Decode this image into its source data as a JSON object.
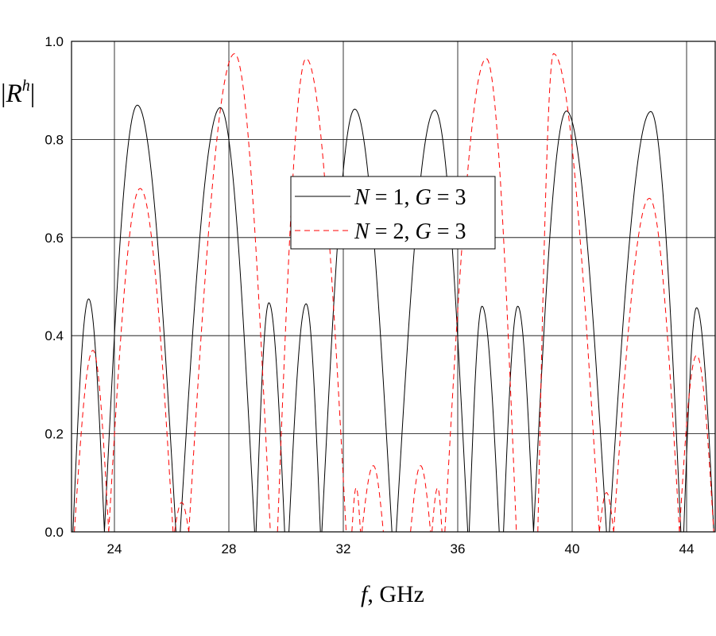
{
  "chart_data": {
    "type": "line",
    "title": "",
    "xlabel": "f, GHz",
    "xlabel_italic": "f",
    "xlabel_rest": ", GHz",
    "ylabel": "|R^h|",
    "ylabel_bar_left": "|",
    "ylabel_main": "R",
    "ylabel_sup": "h",
    "ylabel_bar_right": "|",
    "xlim": [
      22.5,
      45
    ],
    "ylim": [
      0,
      1
    ],
    "xticks": [
      24,
      28,
      32,
      36,
      40,
      44
    ],
    "xtick_labels": [
      "24",
      "28",
      "32",
      "36",
      "40",
      "44"
    ],
    "yticks": [
      0,
      0.2,
      0.4,
      0.6,
      0.8,
      1.0
    ],
    "ytick_labels": [
      "0.0",
      "0.2",
      "0.4",
      "0.6",
      "0.8",
      "1.0"
    ],
    "grid": true,
    "legend_placement": "center",
    "series": [
      {
        "name": "N = 1, G = 3",
        "legend_parts": [
          "N",
          " = 1, ",
          "G",
          " = 3"
        ],
        "color": "#000000",
        "style": "solid",
        "peaks": [
          [
            22.55,
            0.0
          ],
          [
            23.1,
            0.475
          ],
          [
            23.65,
            0.0
          ],
          [
            23.65,
            0.0
          ],
          [
            24.8,
            0.87
          ],
          [
            26.15,
            0.0
          ],
          [
            26.3,
            0.0
          ],
          [
            27.7,
            0.865
          ],
          [
            28.9,
            0.0
          ],
          [
            28.95,
            0.0
          ],
          [
            29.4,
            0.467
          ],
          [
            29.95,
            0.0
          ],
          [
            30.1,
            0.0
          ],
          [
            30.7,
            0.465
          ],
          [
            31.2,
            0.0
          ],
          [
            31.25,
            0.0
          ],
          [
            32.4,
            0.862
          ],
          [
            33.7,
            0.0
          ],
          [
            33.85,
            0.0
          ],
          [
            35.2,
            0.86
          ],
          [
            36.35,
            0.0
          ],
          [
            36.4,
            0.0
          ],
          [
            36.85,
            0.46
          ],
          [
            37.45,
            0.0
          ],
          [
            37.6,
            0.0
          ],
          [
            38.1,
            0.46
          ],
          [
            38.65,
            0.0
          ],
          [
            38.65,
            0.0
          ],
          [
            39.8,
            0.858
          ],
          [
            41.2,
            0.0
          ],
          [
            41.3,
            0.0
          ],
          [
            42.75,
            0.857
          ],
          [
            43.8,
            0.0
          ],
          [
            43.9,
            0.0
          ],
          [
            44.35,
            0.457
          ],
          [
            44.95,
            0.0
          ]
        ]
      },
      {
        "name": "N = 2, G = 3",
        "legend_parts": [
          "N",
          " = 2, ",
          "G",
          " = 3"
        ],
        "color": "#ff0000",
        "style": "dashed",
        "peaks": [
          [
            22.6,
            0.0
          ],
          [
            23.25,
            0.37
          ],
          [
            23.8,
            0.0
          ],
          [
            23.8,
            0.0
          ],
          [
            24.9,
            0.7
          ],
          [
            26.05,
            0.0
          ],
          [
            26.1,
            0.0
          ],
          [
            26.35,
            0.06
          ],
          [
            26.6,
            0.0
          ],
          [
            26.6,
            0.0
          ],
          [
            28.2,
            0.975
          ],
          [
            29.45,
            0.0
          ],
          [
            29.7,
            0.0
          ],
          [
            30.7,
            0.965
          ],
          [
            32.1,
            0.0
          ],
          [
            32.3,
            0.0
          ],
          [
            32.45,
            0.09
          ],
          [
            32.6,
            0.0
          ],
          [
            32.65,
            0.0
          ],
          [
            33.05,
            0.135
          ],
          [
            33.4,
            0.0
          ],
          [
            34.35,
            0.0
          ],
          [
            34.7,
            0.135
          ],
          [
            35.05,
            0.0
          ],
          [
            35.1,
            0.0
          ],
          [
            35.3,
            0.09
          ],
          [
            35.45,
            0.0
          ],
          [
            35.55,
            0.0
          ],
          [
            37.0,
            0.965
          ],
          [
            38.05,
            0.0
          ],
          [
            38.8,
            0.0
          ],
          [
            39.35,
            0.975
          ],
          [
            40.95,
            0.0
          ],
          [
            40.95,
            0.0
          ],
          [
            41.2,
            0.08
          ],
          [
            41.45,
            0.0
          ],
          [
            41.45,
            0.0
          ],
          [
            42.7,
            0.68
          ],
          [
            43.75,
            0.0
          ],
          [
            43.75,
            0.0
          ],
          [
            44.35,
            0.36
          ],
          [
            44.95,
            0.0
          ]
        ]
      }
    ]
  }
}
